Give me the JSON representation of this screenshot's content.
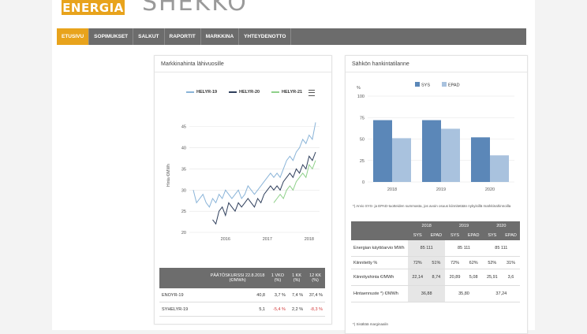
{
  "logo": {
    "badge": "ENERGIA",
    "word": "SHEKKO"
  },
  "nav": [
    "ETUSIVU",
    "SOPIMUKSET",
    "SALKUT",
    "RAPORTIT",
    "MARKKINA",
    "YHTEYDENOTTO"
  ],
  "left_panel": {
    "title": "Markkinahinta lähivuosille",
    "legend": [
      "HELYR-19",
      "HELYR-20",
      "HELYR-21"
    ],
    "table": {
      "headers": [
        "",
        "PÄÄTÖSKURSSI 22.8.2018 (€/MWh)",
        "1 VKO (%)",
        "1 KK (%)",
        "12 KK (%)"
      ],
      "rows": [
        [
          "ENOYR-19",
          "40,8",
          "3,7 %",
          "7,4 %",
          "37,4 %"
        ],
        [
          "SYHELYR-19",
          "5,1",
          "-5,4 %",
          "2,2 %",
          "-8,3 %"
        ]
      ]
    }
  },
  "right_panel": {
    "title": "Sähkön hankintatilanne",
    "chart_note": "*) Arvio SYS- ja EPAD-tuotteiden summasta, jos avoin osuus kiinnitetään nykyisillä markkinahinnoilla",
    "table": {
      "years": [
        "2018",
        "2019",
        "2020"
      ],
      "sub": [
        "SYS",
        "EPAD",
        "SYS",
        "EPAD",
        "SYS",
        "EPAD"
      ],
      "rows": [
        {
          "label": "Energian käyttöarvio MWh",
          "values": [
            "85 111",
            "85 111",
            "85 111"
          ],
          "merged": true
        },
        {
          "label": "Kiinnitetty %",
          "values": [
            "72%",
            "51%",
            "72%",
            "62%",
            "52%",
            "31%"
          ],
          "merged": false
        },
        {
          "label": "Kiinnityshinta €/MWh",
          "values": [
            "22,14",
            "8,74",
            "20,89",
            "5,08",
            "25,91",
            "3,6"
          ],
          "merged": false
        },
        {
          "label": "Hintaennuste *) €/MWh",
          "values": [
            "36,88",
            "35,80",
            "37,24"
          ],
          "merged": true
        }
      ],
      "footnote": "*) Sisältää marginaalin"
    }
  },
  "chart_data": [
    {
      "type": "line",
      "title": "",
      "ylabel": "Hinta €/MWh",
      "ylim": [
        20,
        47
      ],
      "yticks": [
        20,
        25,
        30,
        35,
        40,
        45
      ],
      "xticks": [
        "2016",
        "2017",
        "2018"
      ],
      "grid": true,
      "legend": "top",
      "series": [
        {
          "name": "HELYR-19",
          "color": "#8ab4d8",
          "values": [
            30,
            27,
            28,
            29,
            27,
            26,
            28,
            27,
            29,
            28,
            30,
            29,
            28,
            29,
            30,
            28,
            29,
            31,
            30,
            29,
            30,
            31,
            32,
            33,
            34,
            33,
            34,
            33,
            35,
            37,
            38,
            37,
            39,
            40,
            42,
            41,
            43,
            42,
            46
          ]
        },
        {
          "name": "HELYR-20",
          "color": "#2f3f5c",
          "values": [
            null,
            null,
            null,
            null,
            null,
            null,
            23,
            22,
            25,
            26,
            24,
            27,
            26,
            25,
            27,
            26,
            27,
            28,
            27,
            26,
            28,
            27,
            29,
            30,
            31,
            30,
            31,
            30,
            32,
            33,
            34,
            33,
            35,
            34,
            36,
            35,
            38,
            37,
            39
          ]
        },
        {
          "name": "HELYR-21",
          "color": "#8fd08a",
          "values": [
            null,
            null,
            null,
            null,
            null,
            null,
            null,
            null,
            null,
            null,
            null,
            null,
            null,
            null,
            null,
            null,
            null,
            null,
            null,
            null,
            null,
            null,
            null,
            null,
            null,
            27,
            28,
            29,
            28,
            30,
            31,
            30,
            32,
            33,
            34,
            33,
            36,
            35,
            37
          ]
        }
      ]
    },
    {
      "type": "bar",
      "title": "",
      "ylabel": "%",
      "ylim": [
        0,
        100
      ],
      "yticks": [
        0,
        25,
        50,
        75,
        100
      ],
      "categories": [
        "2018",
        "2019",
        "2020"
      ],
      "legend": "top",
      "series": [
        {
          "name": "SYS",
          "color": "#5b87b8",
          "values": [
            72,
            72,
            52
          ]
        },
        {
          "name": "EPAD",
          "color": "#a9c2de",
          "values": [
            51,
            62,
            31
          ]
        }
      ]
    }
  ]
}
